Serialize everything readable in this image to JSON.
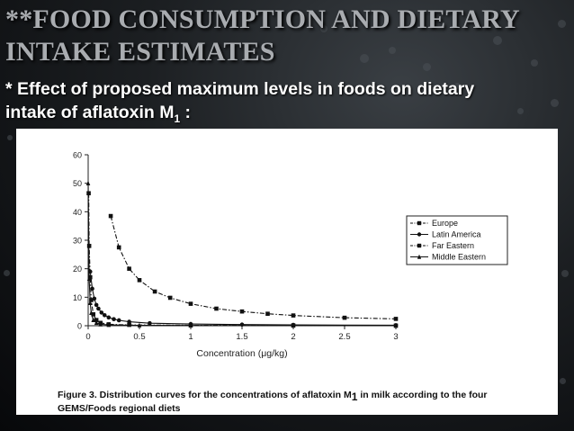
{
  "slide": {
    "title": "**FOOD CONSUMPTION AND DIETARY INTAKE ESTIMATES",
    "subtitle_main": "* Effect of proposed maximum levels in foods on dietary intake of aflatoxin M",
    "subtitle_sub": "1",
    "subtitle_end": " :"
  },
  "figure": {
    "caption_main": "Figure 3.  Distribution curves for the concentrations of aflatoxin M",
    "caption_sub": "1",
    "caption_end": "  in milk according to the four GEMS/Foods regional diets"
  },
  "chart_data": {
    "type": "line",
    "title": "",
    "xlabel": "Concentration (μg/kg)",
    "ylabel": "",
    "xlim": [
      0,
      3
    ],
    "ylim": [
      0,
      60
    ],
    "xticks": [
      "0",
      "0.5",
      "1",
      "1.5",
      "2",
      "2.5",
      "3"
    ],
    "yticks": [
      "0",
      "10",
      "20",
      "30",
      "40",
      "50",
      "60"
    ],
    "grid": false,
    "legend_position": "right",
    "series": [
      {
        "name": "Europe",
        "marker": "square",
        "dash": "dash-dot",
        "x": [
          0.22,
          0.3,
          0.4,
          0.5,
          0.65,
          0.8,
          1.0,
          1.25,
          1.5,
          1.75,
          2.0,
          2.5,
          3.0
        ],
        "y": [
          38.5,
          27.5,
          20.0,
          16.0,
          12.0,
          9.8,
          7.7,
          6.0,
          5.0,
          4.2,
          3.6,
          2.8,
          2.4
        ]
      },
      {
        "name": "Latin America",
        "marker": "circle",
        "dash": "solid",
        "x": [
          0.02,
          0.04,
          0.06,
          0.08,
          0.1,
          0.13,
          0.16,
          0.2,
          0.25,
          0.3,
          0.4,
          0.6,
          1.0,
          1.5,
          2.0,
          3.0
        ],
        "y": [
          19.0,
          13.0,
          9.5,
          7.3,
          6.0,
          4.6,
          3.7,
          2.9,
          2.3,
          1.9,
          1.4,
          0.9,
          0.6,
          0.4,
          0.3,
          0.2
        ]
      },
      {
        "name": "Far Eastern",
        "marker": "square",
        "dash": "dash-dot",
        "x": [
          0.005,
          0.01,
          0.02,
          0.03,
          0.05,
          0.08,
          0.12,
          0.2,
          0.4,
          1.0,
          2.0,
          3.0
        ],
        "y": [
          46.5,
          28.0,
          17.0,
          9.0,
          4.0,
          2.0,
          1.0,
          0.5,
          0.3,
          0.15,
          0.1,
          0.05
        ]
      },
      {
        "name": "Middle Eastern",
        "marker": "triangle",
        "dash": "solid",
        "x": [
          0.0,
          0.01,
          0.02,
          0.03,
          0.05,
          0.08,
          0.12,
          0.2,
          0.5,
          1.0,
          2.0,
          3.0
        ],
        "y": [
          50.0,
          16.5,
          8.0,
          4.5,
          2.0,
          1.0,
          0.5,
          0.3,
          0.15,
          0.1,
          0.05,
          0.02
        ]
      }
    ]
  }
}
